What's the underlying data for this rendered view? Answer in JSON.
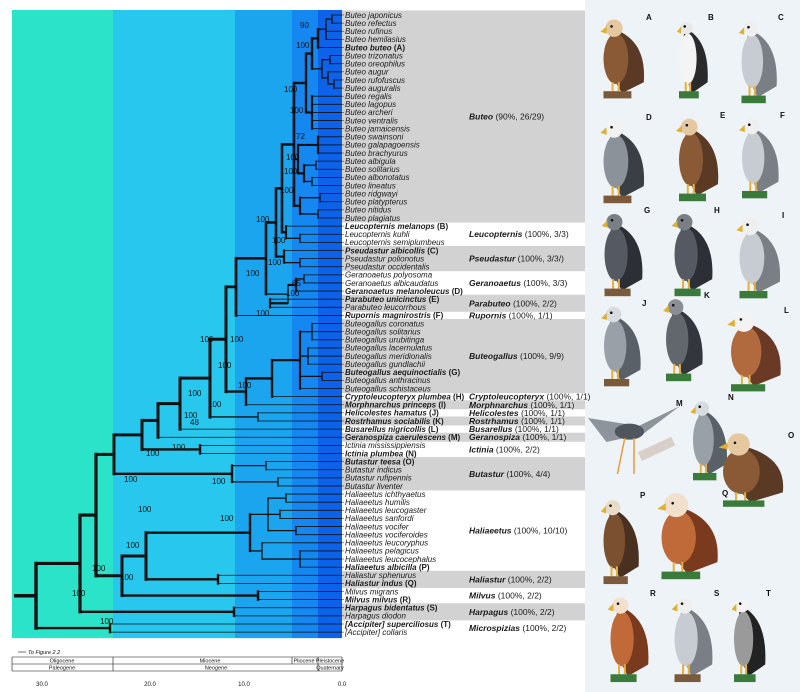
{
  "tips": [
    {
      "name": "Buteo japonicus",
      "bold": false
    },
    {
      "name": "Buteo refectus",
      "bold": false
    },
    {
      "name": "Buteo rufinus",
      "bold": false
    },
    {
      "name": "Buteo hemilasius",
      "bold": false
    },
    {
      "name": "Buteo buteo",
      "suffix": " (A)",
      "bold": true
    },
    {
      "name": "Buteo trizonatus",
      "bold": false
    },
    {
      "name": "Buteo oreophilus",
      "bold": false
    },
    {
      "name": "Buteo augur",
      "bold": false
    },
    {
      "name": "Buteo rufofuscus",
      "bold": false
    },
    {
      "name": "Buteo auguralis",
      "bold": false
    },
    {
      "name": "Buteo regalis",
      "bold": false
    },
    {
      "name": "Buteo lagopus",
      "bold": false
    },
    {
      "name": "Buteo archeri",
      "bold": false
    },
    {
      "name": "Buteo ventralis",
      "bold": false
    },
    {
      "name": "Buteo jamaicensis",
      "bold": false
    },
    {
      "name": "Buteo swainsoni",
      "bold": false
    },
    {
      "name": "Buteo galapagoensis",
      "bold": false
    },
    {
      "name": "Buteo brachyurus",
      "bold": false
    },
    {
      "name": "Buteo albigula",
      "bold": false
    },
    {
      "name": "Buteo solitarius",
      "bold": false
    },
    {
      "name": "Buteo albonotatus",
      "bold": false
    },
    {
      "name": "Buteo lineatus",
      "bold": false
    },
    {
      "name": "Buteo ridgwayi",
      "bold": false
    },
    {
      "name": "Buteo platypterus",
      "bold": false
    },
    {
      "name": "Buteo nitidus",
      "bold": false
    },
    {
      "name": "Buteo plagiatus",
      "bold": false
    },
    {
      "name": "Leucopternis melanops",
      "suffix": " (B)",
      "bold": true
    },
    {
      "name": "Leucopternis kuhli",
      "bold": false
    },
    {
      "name": "Leucopternis semiplumbeus",
      "bold": false
    },
    {
      "name": "Pseudastur albicollis",
      "suffix": " (C)",
      "bold": true
    },
    {
      "name": "Pseudastur polionotus",
      "bold": false
    },
    {
      "name": "Pseudastur occidentalis",
      "bold": false
    },
    {
      "name": "Geranoaetus polyosoma",
      "bold": false
    },
    {
      "name": "Geranoaetus albicaudatus",
      "bold": false
    },
    {
      "name": "Geranoaetus melanoleucus",
      "suffix": " (D)",
      "bold": true
    },
    {
      "name": "Parabuteo unicinctus",
      "suffix": " (E)",
      "bold": true
    },
    {
      "name": "Parabuteo leucorrhous",
      "bold": false
    },
    {
      "name": "Rupornis magnirostris",
      "suffix": " (F)",
      "bold": true
    },
    {
      "name": "Buteogallus coronatus",
      "bold": false
    },
    {
      "name": "Buteogallus solitarius",
      "bold": false
    },
    {
      "name": "Buteogallus urubitinga",
      "bold": false
    },
    {
      "name": "Buteogallus lacernulatus",
      "bold": false
    },
    {
      "name": "Buteogallus meridionalis",
      "bold": false
    },
    {
      "name": "Buteogallus gundlachii",
      "bold": false
    },
    {
      "name": "Buteogallus aequinoctialis",
      "suffix": " (G)",
      "bold": true
    },
    {
      "name": "Buteogallus anthracinus",
      "bold": false
    },
    {
      "name": "Buteogallus schistaceus",
      "bold": false
    },
    {
      "name": "Cryptoleucopteryx plumbea",
      "suffix": " (H)",
      "bold": true
    },
    {
      "name": "Morphnarchus princeps",
      "suffix": " (I)",
      "bold": true
    },
    {
      "name": "Helicolestes hamatus",
      "suffix": " (J)",
      "bold": true
    },
    {
      "name": "Rostrhamus sociabilis",
      "suffix": " (K)",
      "bold": true
    },
    {
      "name": "Busarellus nigricollis",
      "suffix": " (L)",
      "bold": true
    },
    {
      "name": "Geranospiza caerulescens",
      "suffix": " (M)",
      "bold": true
    },
    {
      "name": "Ictinia mississippiensis",
      "bold": false
    },
    {
      "name": "Ictinia plumbea",
      "suffix": " (N)",
      "bold": true
    },
    {
      "name": "Butastur teesa",
      "suffix": " (O)",
      "bold": true
    },
    {
      "name": "Butastur indicus",
      "bold": false
    },
    {
      "name": "Butastur rufipennis",
      "bold": false
    },
    {
      "name": "Butastur liventer",
      "bold": false
    },
    {
      "name": "Haliaeetus ichthyaetus",
      "bold": false
    },
    {
      "name": "Haliaeetus humilis",
      "bold": false
    },
    {
      "name": "Haliaeetus leucogaster",
      "bold": false
    },
    {
      "name": "Haliaeetus sanfordi",
      "bold": false
    },
    {
      "name": "Haliaeetus vocifer",
      "bold": false
    },
    {
      "name": "Haliaeetus vociferoides",
      "bold": false
    },
    {
      "name": "Haliaeetus leucoryphus",
      "bold": false
    },
    {
      "name": "Haliaeetus pelagicus",
      "bold": false
    },
    {
      "name": "Haliaeetus leucocephalus",
      "bold": false
    },
    {
      "name": "Haliaeetus albicilla",
      "suffix": " (P)",
      "bold": true
    },
    {
      "name": "Haliastur sphenurus",
      "bold": false
    },
    {
      "name": "Haliastur indus",
      "suffix": " (Q)",
      "bold": true
    },
    {
      "name": "Milvus migrans",
      "bold": false
    },
    {
      "name": "Milvus milvus",
      "suffix": " (R)",
      "bold": true
    },
    {
      "name": "Harpagus bidentatus",
      "suffix": " (S)",
      "bold": true
    },
    {
      "name": "Harpagus diodon",
      "bold": false
    },
    {
      "name": "[Accipiter] superciliosus",
      "suffix": " (T)",
      "bold": true
    },
    {
      "name": "[Accipiter] collaris",
      "bold": false
    }
  ],
  "clades": [
    {
      "genus": "Buteo",
      "detail": " (90%, 26/29)",
      "from": 0,
      "to": 25,
      "shaded": true
    },
    {
      "genus": "Leucopternis",
      "detail": " (100%, 3/3)",
      "from": 26,
      "to": 28,
      "shaded": false
    },
    {
      "genus": "Pseudastur",
      "detail": " (100%, 3/3/)",
      "from": 29,
      "to": 31,
      "shaded": true
    },
    {
      "genus": "Geranoaetus",
      "detail": " (100%, 3/3)",
      "from": 32,
      "to": 34,
      "shaded": false
    },
    {
      "genus": "Parabuteo",
      "detail": " (100%, 2/2)",
      "from": 35,
      "to": 36,
      "shaded": true
    },
    {
      "genus": "Rupornis",
      "detail": " (100%, 1/1)",
      "from": 37,
      "to": 37,
      "shaded": false
    },
    {
      "genus": "Buteogallus",
      "detail": " (100%, 9/9)",
      "from": 38,
      "to": 46,
      "shaded": true
    },
    {
      "genus": "Cryptoleucopteryx",
      "detail": " (100%, 1/1)",
      "from": 47,
      "to": 47,
      "shaded": false
    },
    {
      "genus": "Morphnarchus",
      "detail": " (100%, 1/1)",
      "from": 48,
      "to": 48,
      "shaded": true
    },
    {
      "genus": "Helicolestes",
      "detail": " (100%, 1/1)",
      "from": 49,
      "to": 49,
      "shaded": false
    },
    {
      "genus": "Rostrhamus",
      "detail": " (100%, 1/1)",
      "from": 50,
      "to": 50,
      "shaded": true
    },
    {
      "genus": "Busarellus",
      "detail": " (100%, 1/1)",
      "from": 51,
      "to": 51,
      "shaded": false
    },
    {
      "genus": "Geranospiza",
      "detail": " (100%, 1/1)",
      "from": 52,
      "to": 52,
      "shaded": true
    },
    {
      "genus": "Ictinia",
      "detail": " (100%, 2/2)",
      "from": 53,
      "to": 54,
      "shaded": false
    },
    {
      "genus": "Butastur",
      "detail": " (100%, 4/4)",
      "from": 55,
      "to": 58,
      "shaded": true
    },
    {
      "genus": "Haliaeetus",
      "detail": " (100%, 10/10)",
      "from": 59,
      "to": 68,
      "shaded": false
    },
    {
      "genus": "Haliastur",
      "detail": " (100%, 2/2)",
      "from": 69,
      "to": 70,
      "shaded": true
    },
    {
      "genus": "Milvus",
      "detail": " (100%, 2/2)",
      "from": 71,
      "to": 72,
      "shaded": false
    },
    {
      "genus": "Harpagus",
      "detail": " (100%, 2/2)",
      "from": 73,
      "to": 74,
      "shaded": true
    },
    {
      "genus": "Microspizias",
      "detail": " (100%, 2/2)",
      "from": 75,
      "to": 76,
      "shaded": false
    }
  ],
  "support_labels": [
    "90",
    "100",
    "100",
    "100",
    "72",
    "100",
    "100",
    "100",
    "100",
    "100",
    "100",
    "100",
    "100",
    "65",
    "100",
    "100",
    "100",
    "100",
    "100",
    "100",
    "100",
    "100",
    "48",
    "100",
    "100",
    "100",
    "100",
    "100",
    "100",
    "100",
    "100",
    "100",
    "100",
    "100"
  ],
  "time_axis": {
    "ticks": [
      "30.0",
      "20.0",
      "10.0",
      "0.0"
    ],
    "epochs": [
      "Oligocene",
      "Miocene",
      "Pliocene",
      "Pleistocene"
    ],
    "periods": [
      "Paleogene",
      "Neogene",
      "Quaternary"
    ],
    "note": "To Figure 2.2"
  },
  "colors": {
    "oligocene": "#2be3c9",
    "miocene_early": "#28c8ee",
    "miocene_late": "#1aa5ee",
    "pliocene": "#1488f0",
    "pleistocene": "#0c62e8",
    "clade_shade": "#d2d2d2"
  },
  "illustrations": [
    {
      "label": "A",
      "icon": "hawk-brown"
    },
    {
      "label": "B",
      "icon": "hawk-white"
    },
    {
      "label": "C",
      "icon": "hawk-grey"
    },
    {
      "label": "D",
      "icon": "eagle-grey"
    },
    {
      "label": "E",
      "icon": "hawk-brown"
    },
    {
      "label": "F",
      "icon": "hawk-grey"
    },
    {
      "label": "G",
      "icon": "hawk-dark"
    },
    {
      "label": "H",
      "icon": "hawk-dark"
    },
    {
      "label": "I",
      "icon": "hawk-grey"
    },
    {
      "label": "J",
      "icon": "kite-grey"
    },
    {
      "label": "K",
      "icon": "kite-dark"
    },
    {
      "label": "L",
      "icon": "hawk-rufous"
    },
    {
      "label": "M",
      "icon": "hawk-flying"
    },
    {
      "label": "N",
      "icon": "kite-grey"
    },
    {
      "label": "O",
      "icon": "hawk-brown"
    },
    {
      "label": "P",
      "icon": "eagle-brown"
    },
    {
      "label": "Q",
      "icon": "kite-rufous"
    },
    {
      "label": "R",
      "icon": "kite-rufous"
    },
    {
      "label": "S",
      "icon": "hawk-grey"
    },
    {
      "label": "T",
      "icon": "hawk-barred"
    }
  ]
}
